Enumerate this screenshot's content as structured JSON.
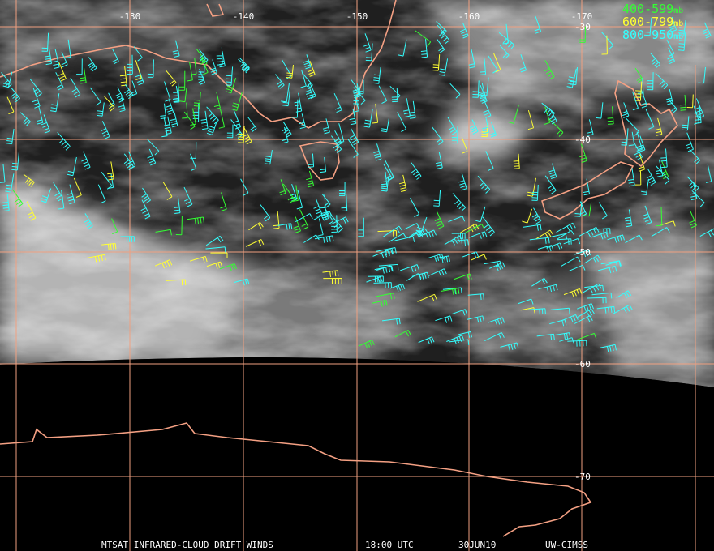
{
  "map": {
    "longitude_labels": [
      "-130",
      "-140",
      "-150",
      "-160",
      "-170"
    ],
    "latitude_labels": [
      "-30",
      "-40",
      "-50",
      "-60",
      "-70"
    ],
    "legend": [
      {
        "label": "400-599",
        "unit": "mb",
        "color": "#33ff33"
      },
      {
        "label": "600-799",
        "unit": "mb",
        "color": "#ffff33"
      },
      {
        "label": "800-950",
        "unit": "mb",
        "color": "#33ffff"
      }
    ],
    "footer": [
      "MTSAT INFRARED-CLOUD DRIFT WINDS",
      "18:00 UTC",
      "30JUN10",
      "UW-CIMSS"
    ]
  }
}
